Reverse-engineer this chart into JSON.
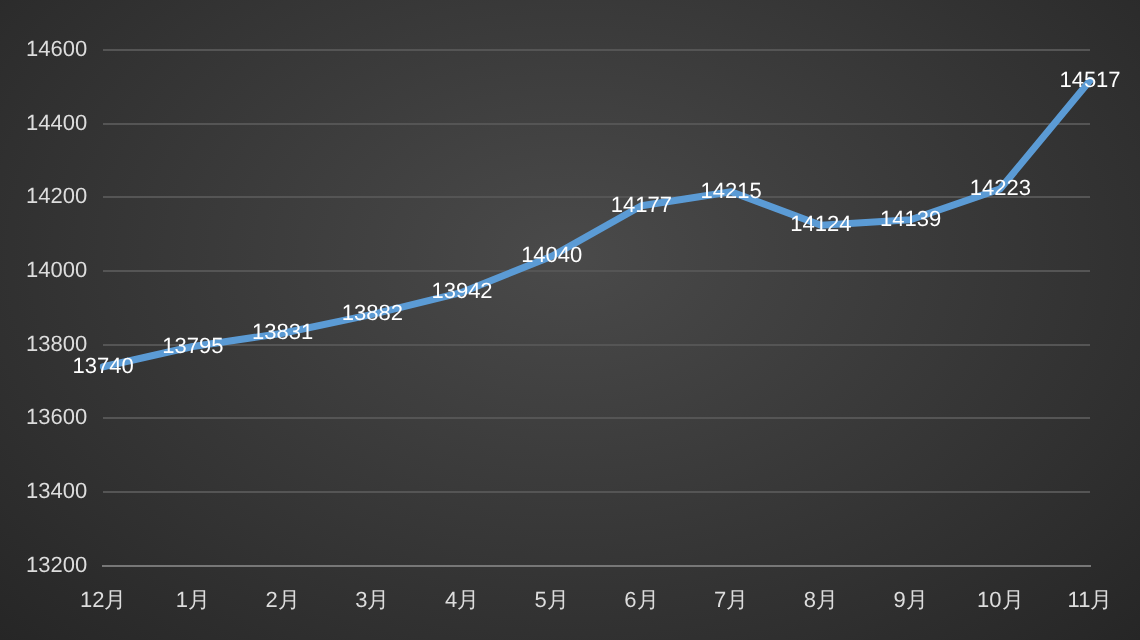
{
  "chart_data": {
    "type": "line",
    "categories": [
      "12月",
      "1月",
      "2月",
      "3月",
      "4月",
      "5月",
      "6月",
      "7月",
      "8月",
      "9月",
      "10月",
      "11月"
    ],
    "series": [
      {
        "color": "#5b9bd5",
        "values": [
          13740,
          13795,
          13831,
          13882,
          13942,
          14040,
          14177,
          14215,
          14124,
          14139,
          14223,
          14517
        ]
      }
    ],
    "ylim": [
      13200,
      14600
    ],
    "yticks": [
      13200,
      13400,
      13600,
      13800,
      14000,
      14200,
      14400,
      14600
    ],
    "grid": "y",
    "legend": false,
    "marker": "none",
    "line_style": "solid",
    "data_labels": true
  }
}
